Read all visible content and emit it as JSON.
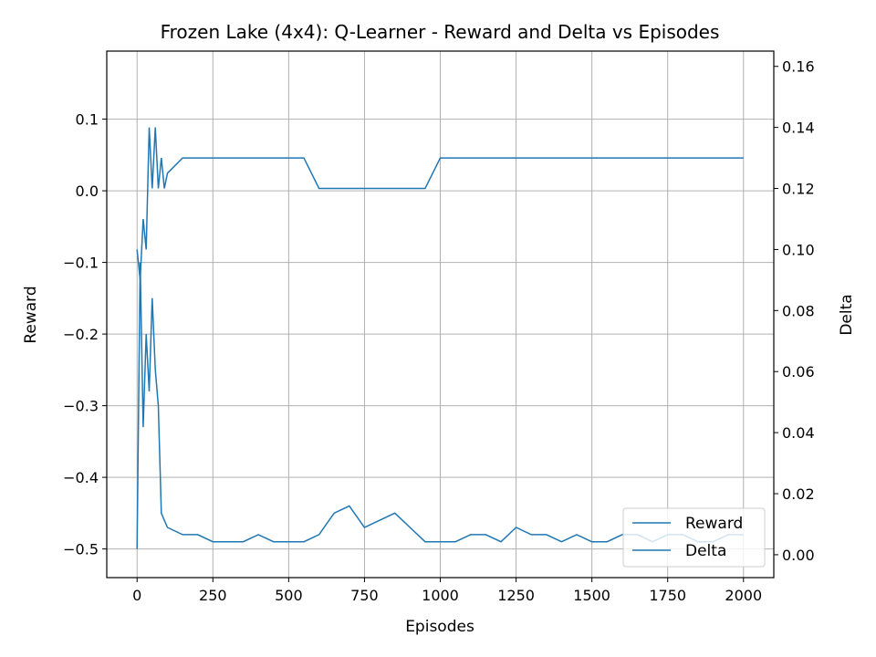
{
  "chart_data": {
    "type": "line",
    "title": "Frozen Lake (4x4): Q-Learner - Reward and Delta vs Episodes",
    "xlabel": "Episodes",
    "ylabel": "Reward",
    "y2label": "Delta",
    "xlim": [
      -100,
      2100
    ],
    "ylim": [
      -0.54,
      0.195
    ],
    "y2lim": [
      -0.0075,
      0.165
    ],
    "xticks": [
      0,
      250,
      500,
      750,
      1000,
      1250,
      1500,
      1750,
      2000
    ],
    "yticks": [
      -0.5,
      -0.4,
      -0.3,
      -0.2,
      -0.1,
      0.0,
      0.1
    ],
    "y2ticks": [
      0.0,
      0.02,
      0.04,
      0.06,
      0.08,
      0.1,
      0.12,
      0.14,
      0.16
    ],
    "xtick_labels": [
      "0",
      "250",
      "500",
      "750",
      "1000",
      "1250",
      "1500",
      "1750",
      "2000"
    ],
    "ytick_labels": [
      "−0.5",
      "−0.4",
      "−0.3",
      "−0.2",
      "−0.1",
      "0.0",
      "0.1"
    ],
    "y2tick_labels": [
      "0.00",
      "0.02",
      "0.04",
      "0.06",
      "0.08",
      "0.10",
      "0.12",
      "0.14",
      "0.16"
    ],
    "grid": true,
    "legend_position": "lower right",
    "line_color": "#1f77b4",
    "series": [
      {
        "name": "Reward",
        "axis": "left",
        "x": [
          0,
          10,
          20,
          30,
          40,
          50,
          60,
          70,
          80,
          90,
          100,
          150,
          200,
          250,
          300,
          350,
          400,
          450,
          500,
          550,
          600,
          650,
          700,
          750,
          800,
          850,
          900,
          950,
          1000,
          1050,
          1100,
          1150,
          1200,
          1250,
          1300,
          1350,
          1400,
          1450,
          1500,
          1550,
          1600,
          1650,
          1700,
          1750,
          1800,
          1850,
          1900,
          1950,
          2000
        ],
        "y": [
          -0.5,
          -0.1,
          -0.33,
          -0.2,
          -0.28,
          -0.15,
          -0.25,
          -0.3,
          -0.45,
          -0.46,
          -0.47,
          -0.48,
          -0.48,
          -0.49,
          -0.49,
          -0.49,
          -0.48,
          -0.49,
          -0.49,
          -0.49,
          -0.48,
          -0.45,
          -0.44,
          -0.47,
          -0.46,
          -0.45,
          -0.47,
          -0.49,
          -0.49,
          -0.49,
          -0.48,
          -0.48,
          -0.49,
          -0.47,
          -0.48,
          -0.48,
          -0.49,
          -0.48,
          -0.49,
          -0.49,
          -0.48,
          -0.48,
          -0.49,
          -0.48,
          -0.48,
          -0.49,
          -0.49,
          -0.48,
          -0.48
        ]
      },
      {
        "name": "Delta",
        "axis": "right",
        "x": [
          0,
          10,
          20,
          30,
          40,
          50,
          60,
          70,
          80,
          90,
          100,
          150,
          200,
          250,
          300,
          350,
          400,
          450,
          500,
          550,
          600,
          650,
          700,
          750,
          800,
          850,
          900,
          950,
          1000,
          1050,
          1100,
          1150,
          1200,
          1250,
          1300,
          1350,
          1400,
          1450,
          1500,
          1550,
          1600,
          1650,
          1700,
          1750,
          1800,
          1850,
          1900,
          1950,
          2000
        ],
        "y": [
          0.1,
          0.09,
          0.11,
          0.1,
          0.14,
          0.12,
          0.14,
          0.12,
          0.13,
          0.12,
          0.125,
          0.13,
          0.13,
          0.13,
          0.13,
          0.13,
          0.13,
          0.13,
          0.13,
          0.13,
          0.12,
          0.12,
          0.12,
          0.12,
          0.12,
          0.12,
          0.12,
          0.12,
          0.13,
          0.13,
          0.13,
          0.13,
          0.13,
          0.13,
          0.13,
          0.13,
          0.13,
          0.13,
          0.13,
          0.13,
          0.13,
          0.13,
          0.13,
          0.13,
          0.13,
          0.13,
          0.13,
          0.13,
          0.13
        ]
      }
    ]
  }
}
